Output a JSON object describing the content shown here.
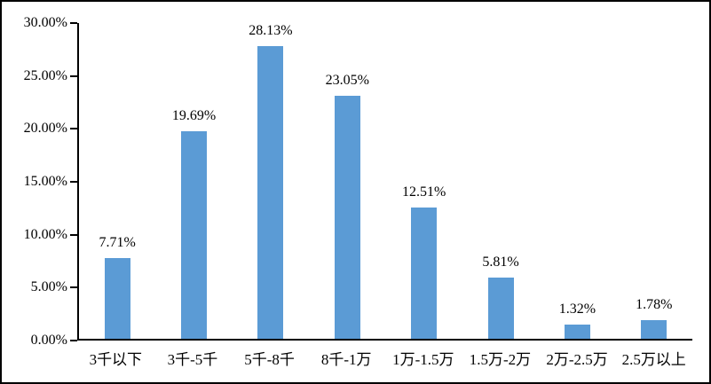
{
  "chart_data": {
    "type": "bar",
    "title": "",
    "categories": [
      "3千以下",
      "3千-5千",
      "5千-8千",
      "8千-1万",
      "1万-1.5万",
      "1.5万-2万",
      "2万-2.5万",
      "2.5万以上"
    ],
    "values": [
      7.71,
      19.69,
      28.13,
      23.05,
      12.51,
      5.81,
      1.32,
      1.78
    ],
    "data_labels": [
      "7.71%",
      "19.69%",
      "28.13%",
      "23.05%",
      "12.51%",
      "5.81%",
      "1.32%",
      "1.78%"
    ],
    "xlabel": "",
    "ylabel": "",
    "ylim": [
      0,
      30
    ],
    "yticks": [
      {
        "value": 30,
        "label": "30.00%"
      },
      {
        "value": 25,
        "label": "25.00%"
      },
      {
        "value": 20,
        "label": "20.00%"
      },
      {
        "value": 15,
        "label": "15.00%"
      },
      {
        "value": 10,
        "label": "10.00%"
      },
      {
        "value": 5,
        "label": "5.00%"
      },
      {
        "value": 0,
        "label": "0.00%"
      }
    ],
    "grid": false,
    "legend": null,
    "bar_color": "#5B9BD5",
    "axis_color": "#000000",
    "background_color": "#FFFFFF",
    "border_color": "#000000"
  }
}
